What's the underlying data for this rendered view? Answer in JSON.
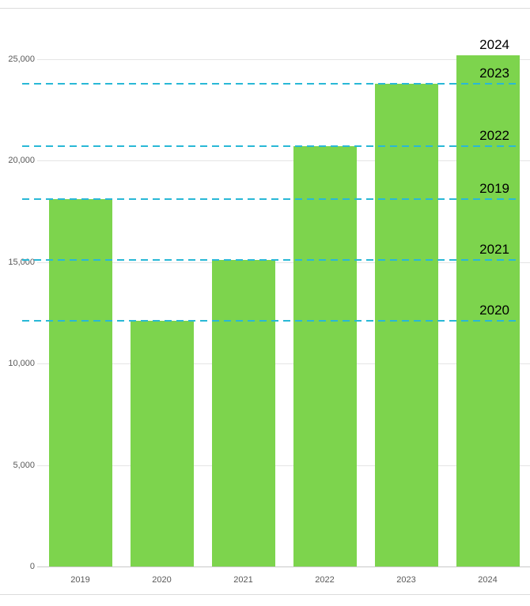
{
  "chart_data": {
    "type": "bar",
    "title": "",
    "xlabel": "",
    "ylabel": "",
    "categories": [
      "2019",
      "2020",
      "2021",
      "2022",
      "2023",
      "2024"
    ],
    "values": [
      18100,
      12100,
      15100,
      20700,
      23800,
      25200
    ],
    "yticks": [
      0,
      5000,
      10000,
      15000,
      20000,
      25000
    ],
    "ytick_labels": [
      "0",
      "5,000",
      "10,000",
      "15,000",
      "20,000",
      "25,000"
    ],
    "ylim": [
      0,
      26000
    ],
    "grid": true,
    "legend": "none",
    "bar_color": "#7dd44d",
    "reference_line_color": "#29b8d6",
    "reference_lines": [
      {
        "label": "2024",
        "value": 25200,
        "show_line": false
      },
      {
        "label": "2023",
        "value": 23800,
        "show_line": true
      },
      {
        "label": "2022",
        "value": 20700,
        "show_line": true
      },
      {
        "label": "2019",
        "value": 18100,
        "show_line": true
      },
      {
        "label": "2021",
        "value": 15100,
        "show_line": true
      },
      {
        "label": "2020",
        "value": 12100,
        "show_line": true
      }
    ]
  }
}
